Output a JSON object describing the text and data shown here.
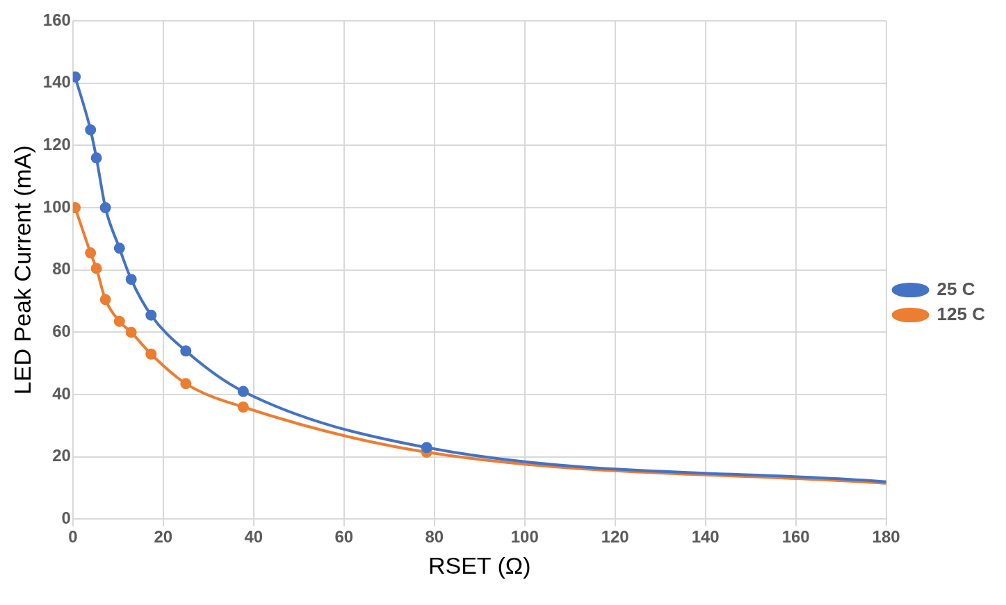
{
  "chart_data": {
    "type": "line",
    "xlabel": "RSET (Ω)",
    "ylabel": "LED Peak Current (mA)",
    "xlim": [
      0,
      180
    ],
    "xticks": [
      0,
      20,
      40,
      60,
      80,
      100,
      120,
      140,
      160,
      180
    ],
    "ylim": [
      0,
      160
    ],
    "yticks": [
      0,
      20,
      40,
      60,
      80,
      100,
      120,
      140,
      160
    ],
    "grid": true,
    "legend": "right",
    "marker": "circle",
    "line_style": "solid",
    "series": [
      {
        "name": "25 C",
        "color": "#4472c4",
        "x": [
          0.5,
          3.9,
          5.2,
          7.2,
          10.3,
          12.9,
          17.3,
          25,
          37.7,
          78.3,
          180
        ],
        "values": [
          142,
          125,
          116,
          100,
          87,
          77,
          65.5,
          54,
          41,
          23,
          12
        ]
      },
      {
        "name": "125 C",
        "color": "#ed7d31",
        "x": [
          0.5,
          3.9,
          5.2,
          7.2,
          10.3,
          12.9,
          17.3,
          25,
          37.7,
          78.3,
          180
        ],
        "values": [
          100,
          85.5,
          80.5,
          70.5,
          63.5,
          60,
          53,
          43.5,
          36,
          21.5,
          11.5
        ]
      }
    ]
  }
}
